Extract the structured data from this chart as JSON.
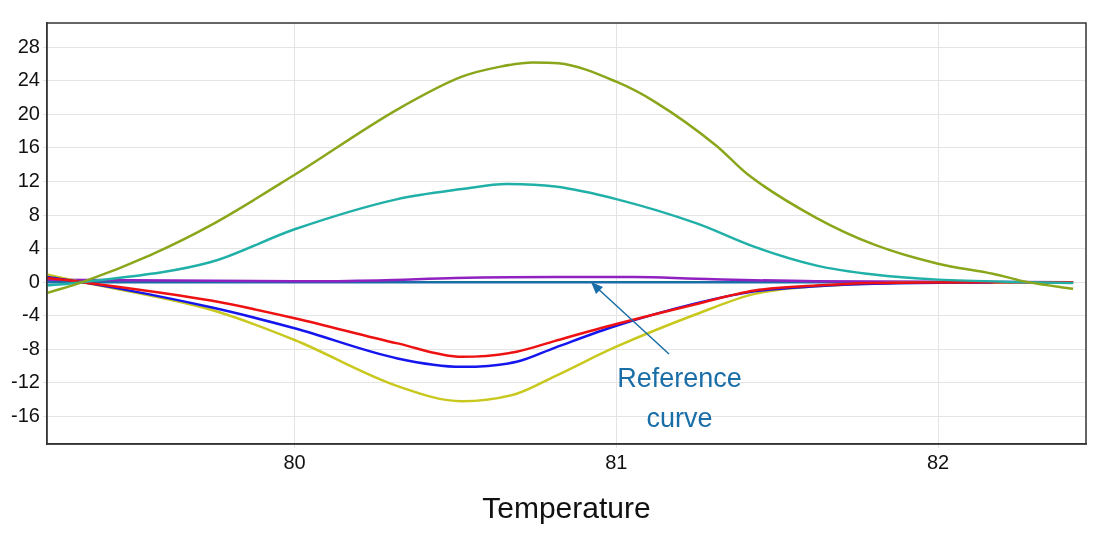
{
  "chart_data": {
    "type": "line",
    "xlabel": "Temperature",
    "annotations": [
      {
        "text": "Reference curve",
        "x": 80.92,
        "y": 0
      }
    ],
    "xlim": [
      79.23,
      82.46
    ],
    "ylim": [
      -19.3,
      30.9
    ],
    "xticks": [
      80,
      81,
      82
    ],
    "yticks": [
      -16,
      -12,
      -8,
      -4,
      0,
      4,
      8,
      12,
      16,
      20,
      24,
      28
    ],
    "grid": true,
    "marker": "none",
    "line_style": "solid",
    "series": [
      {
        "color": "#8aa61a",
        "x": [
          79.23,
          79.34,
          79.55,
          79.74,
          80.0,
          80.32,
          80.52,
          80.64,
          80.74,
          80.82,
          81.0,
          81.12,
          81.31,
          81.41,
          81.62,
          81.8,
          82.0,
          82.17,
          82.28,
          82.42
        ],
        "values": [
          -1.3,
          0,
          3.2,
          6.8,
          12.8,
          20.6,
          24.5,
          25.7,
          26.2,
          26.1,
          23.9,
          21.5,
          16.3,
          12.8,
          7.7,
          4.5,
          2.2,
          1.0,
          0,
          -0.8
        ]
      },
      {
        "color": "#20b0a8",
        "x": [
          79.23,
          79.34,
          79.74,
          80.0,
          80.32,
          80.52,
          80.66,
          80.81,
          81.0,
          81.25,
          81.43,
          81.62,
          81.8,
          82.0,
          82.28,
          82.42
        ],
        "values": [
          -0.4,
          0,
          2.4,
          6.3,
          9.9,
          11.1,
          11.7,
          11.4,
          9.9,
          7.0,
          4.2,
          2.0,
          0.9,
          0.3,
          0,
          -0.1
        ]
      },
      {
        "color": "#ee1111",
        "x": [
          79.23,
          79.34,
          79.74,
          80.0,
          80.32,
          80.52,
          80.69,
          80.81,
          81.0,
          81.25,
          81.43,
          81.62,
          81.8,
          82.17,
          82.42
        ],
        "values": [
          0.5,
          0,
          -2.2,
          -4.3,
          -7.3,
          -8.9,
          -8.3,
          -7.0,
          -5.0,
          -2.6,
          -1.0,
          -0.4,
          -0.1,
          0,
          0
        ]
      },
      {
        "color": "#1515ee",
        "x": [
          79.23,
          79.34,
          79.74,
          80.0,
          80.32,
          80.52,
          80.69,
          80.81,
          81.0,
          81.25,
          81.43,
          81.62,
          81.8,
          82.17
        ],
        "values": [
          0.6,
          0,
          -3.0,
          -5.5,
          -9.1,
          -10.1,
          -9.5,
          -7.8,
          -5.2,
          -2.5,
          -1.1,
          -0.5,
          -0.2,
          0
        ]
      },
      {
        "color": "#c8c81e",
        "x": [
          79.23,
          79.34,
          79.74,
          80.0,
          80.32,
          80.52,
          80.69,
          80.81,
          81.0,
          81.25,
          81.43,
          81.62,
          81.8,
          82.17,
          82.42
        ],
        "values": [
          0.9,
          0,
          -3.3,
          -6.9,
          -12.4,
          -14.2,
          -13.3,
          -11.2,
          -7.7,
          -3.8,
          -1.4,
          -0.5,
          null,
          0,
          0
        ]
      },
      {
        "color": "#9020c0",
        "x": [
          79.23,
          80.0,
          80.26,
          80.5,
          80.81,
          81.06,
          81.25,
          81.62,
          82.42
        ],
        "values": [
          0.3,
          0.1,
          0.2,
          0.5,
          0.6,
          0.6,
          0.4,
          0.1,
          0.0
        ]
      },
      {
        "color": "#1a6ea8",
        "x": [
          79.23,
          82.42
        ],
        "values": [
          0,
          0
        ]
      }
    ]
  }
}
